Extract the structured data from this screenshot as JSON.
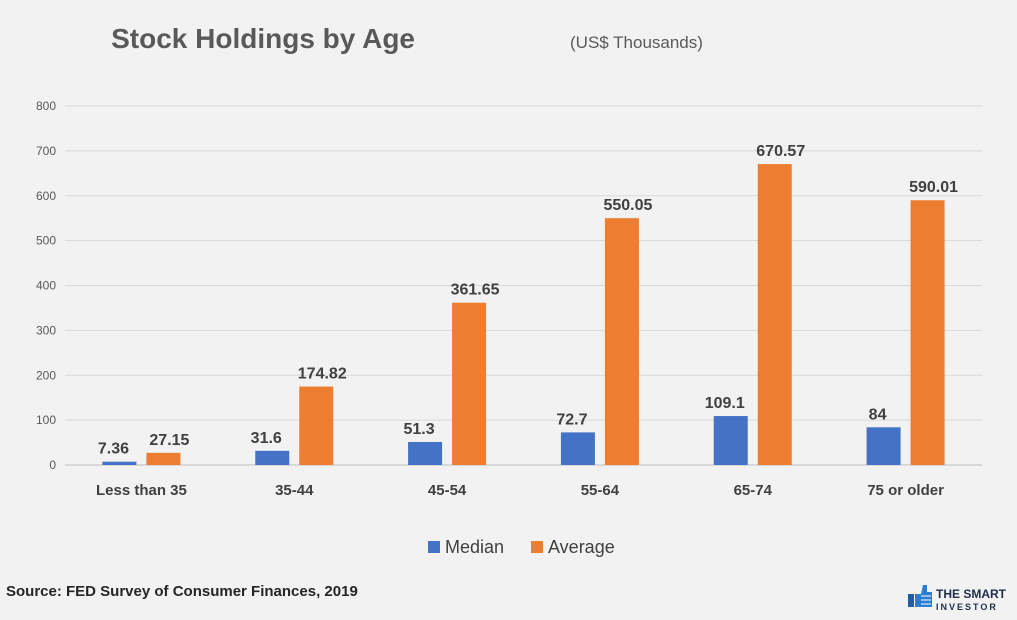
{
  "chart_data": {
    "type": "bar",
    "title": "Stock Holdings by Age",
    "subtitle": "(US$ Thousands)",
    "categories": [
      "Less than 35",
      "35-44",
      "45-54",
      "55-64",
      "65-74",
      "75 or older"
    ],
    "series": [
      {
        "name": "Median",
        "color": "#4472c4",
        "values": [
          7.36,
          31.6,
          51.3,
          72.7,
          109.1,
          84
        ],
        "labels": [
          "7.36",
          "31.6",
          "51.3",
          "72.7",
          "109.1",
          "84"
        ]
      },
      {
        "name": "Average",
        "color": "#ed7d31",
        "values": [
          27.15,
          174.82,
          361.65,
          550.05,
          670.57,
          590.01
        ],
        "labels": [
          "27.15",
          "174.82",
          "361.65",
          "550.05",
          "670.57",
          "590.01"
        ]
      }
    ],
    "ylim": [
      0,
      800
    ],
    "yticks": [
      "0",
      "100",
      "200",
      "300",
      "400",
      "500",
      "600",
      "700",
      "800"
    ],
    "grid": true,
    "legend_position": "bottom"
  },
  "source": "Source: FED Survey of Consumer Finances, 2019",
  "logo": {
    "line1": "THE SMART",
    "line2": "INVESTOR"
  }
}
